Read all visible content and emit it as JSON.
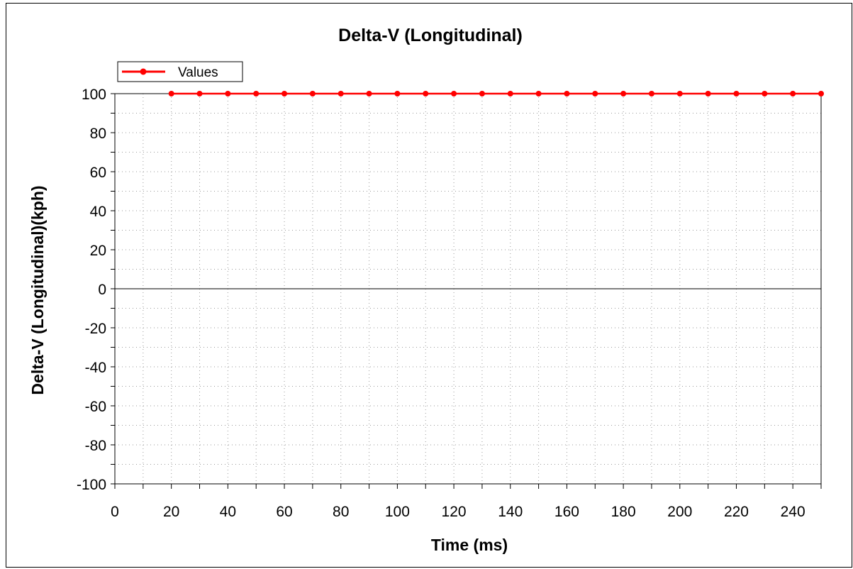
{
  "chart_data": {
    "type": "line",
    "title": "Delta-V (Longitudinal)",
    "xlabel": "Time (ms)",
    "ylabel": "Delta-V (Longitudinal)(kph)",
    "xlim": [
      0,
      250
    ],
    "ylim": [
      -100,
      100
    ],
    "x_ticks": [
      0,
      20,
      40,
      60,
      80,
      100,
      120,
      140,
      160,
      180,
      200,
      220,
      240
    ],
    "y_ticks": [
      100,
      80,
      60,
      40,
      20,
      0,
      -20,
      -40,
      -60,
      -80,
      -100
    ],
    "grid": true,
    "legend_position": "top-left",
    "series": [
      {
        "name": "Values",
        "color": "#ff0000",
        "x": [
          20,
          30,
          40,
          50,
          60,
          70,
          80,
          90,
          100,
          110,
          120,
          130,
          140,
          150,
          160,
          170,
          180,
          190,
          200,
          210,
          220,
          230,
          240,
          250
        ],
        "y": [
          100,
          100,
          100,
          100,
          100,
          100,
          100,
          100,
          100,
          100,
          100,
          100,
          100,
          100,
          100,
          100,
          100,
          100,
          100,
          100,
          100,
          100,
          100,
          100
        ]
      }
    ]
  }
}
